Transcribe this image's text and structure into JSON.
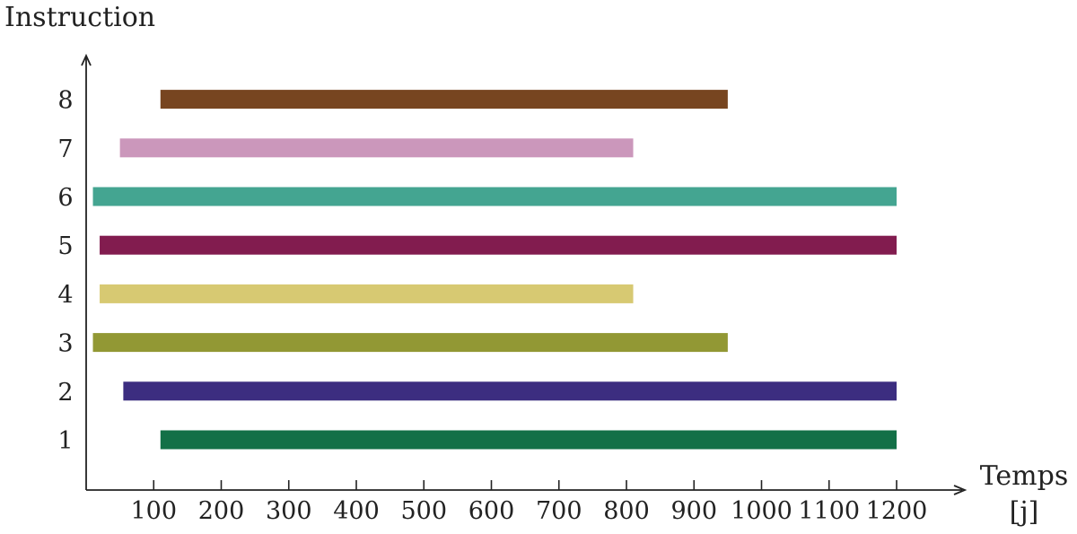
{
  "chart_data": {
    "type": "bar",
    "orientation": "horizontal-range",
    "title": "",
    "ylabel": "Instruction",
    "xlabel": "Temps",
    "xunit": "[j]",
    "xlim": [
      0,
      1250
    ],
    "x_ticks": [
      100,
      200,
      300,
      400,
      500,
      600,
      700,
      800,
      900,
      1000,
      1100,
      1200
    ],
    "grid": false,
    "legend": "none",
    "bars": [
      {
        "category": "1",
        "start": 110,
        "end": 1200,
        "color": "#137047"
      },
      {
        "category": "2",
        "start": 55,
        "end": 1200,
        "color": "#3c2d80"
      },
      {
        "category": "3",
        "start": 10,
        "end": 950,
        "color": "#929834"
      },
      {
        "category": "4",
        "start": 20,
        "end": 810,
        "color": "#d7c972"
      },
      {
        "category": "5",
        "start": 20,
        "end": 1200,
        "color": "#821c4f"
      },
      {
        "category": "6",
        "start": 10,
        "end": 1200,
        "color": "#44a591"
      },
      {
        "category": "7",
        "start": 50,
        "end": 810,
        "color": "#cb97bb"
      },
      {
        "category": "8",
        "start": 110,
        "end": 950,
        "color": "#774520"
      }
    ]
  }
}
